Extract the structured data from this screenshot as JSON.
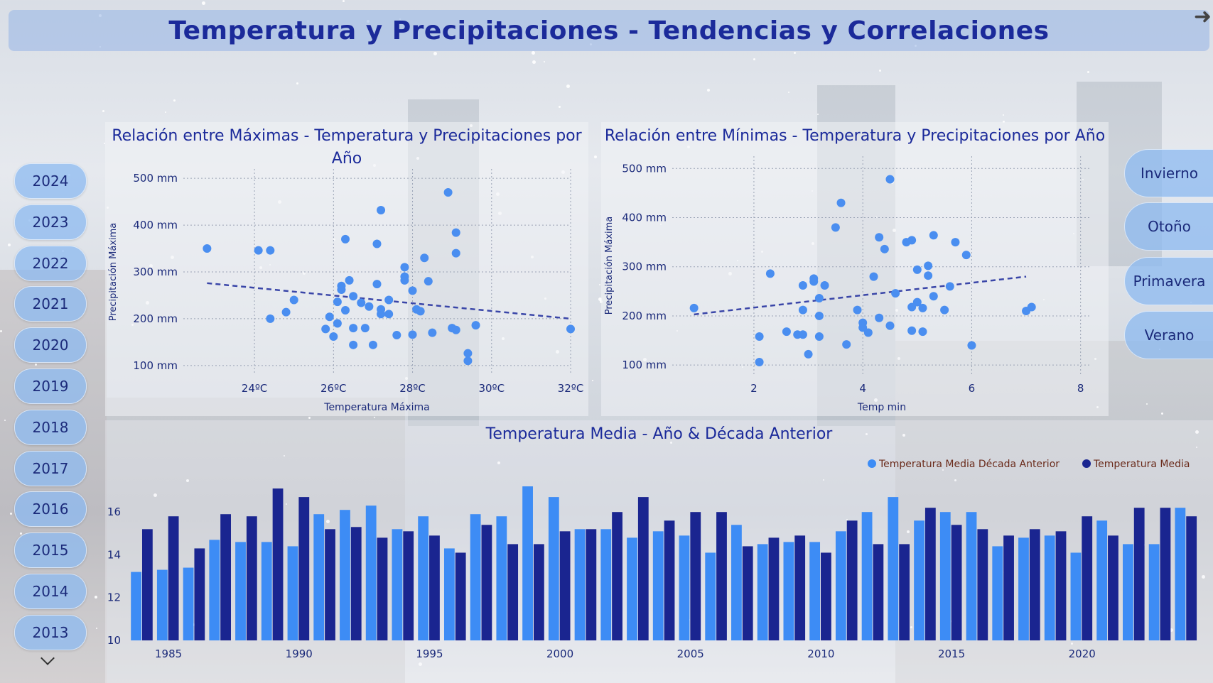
{
  "page": {
    "title": "Temperatura y Precipitaciones - Tendencias y Correlaciones"
  },
  "years": [
    "2024",
    "2023",
    "2022",
    "2021",
    "2020",
    "2019",
    "2018",
    "2017",
    "2016",
    "2015",
    "2014",
    "2013"
  ],
  "seasons": [
    "Invierno",
    "Otoño",
    "Primavera",
    "Verano"
  ],
  "colors": {
    "dot": "#4a8ef0",
    "trend": "#3a46a8",
    "bar_light": "#3d8cf5",
    "bar_dark": "#1a2590",
    "title": "#1b2a9a"
  },
  "icons": {
    "arrow": "arrow-right-icon",
    "chevron": "chevron-down-icon"
  },
  "chart_data": [
    {
      "type": "scatter",
      "title": "Relación entre Máximas - Temperatura y Precipitaciones por Año",
      "xlabel": "Temperatura Máxima",
      "ylabel": "Precipitación Máxima",
      "xlim": [
        22.2,
        32
      ],
      "ylim": [
        80,
        520
      ],
      "xticks": [
        24,
        26,
        28,
        30,
        32
      ],
      "xtick_labels": [
        "24ºC",
        "26ºC",
        "28ºC",
        "30ºC",
        "32ºC"
      ],
      "yticks": [
        100,
        200,
        300,
        400,
        500
      ],
      "ytick_labels": [
        "100 mm",
        "200 mm",
        "300 mm",
        "400 mm",
        "500 mm"
      ],
      "trend": [
        [
          22.8,
          276
        ],
        [
          32,
          200
        ]
      ],
      "points": [
        [
          22.8,
          350
        ],
        [
          24.1,
          346
        ],
        [
          24.4,
          346
        ],
        [
          24.4,
          200
        ],
        [
          24.8,
          214
        ],
        [
          25.0,
          240
        ],
        [
          25.8,
          178
        ],
        [
          25.9,
          204
        ],
        [
          26.0,
          162
        ],
        [
          26.1,
          190
        ],
        [
          26.1,
          236
        ],
        [
          26.2,
          262
        ],
        [
          26.2,
          270
        ],
        [
          26.3,
          370
        ],
        [
          26.3,
          218
        ],
        [
          26.4,
          282
        ],
        [
          26.5,
          180
        ],
        [
          26.5,
          144
        ],
        [
          26.5,
          248
        ],
        [
          26.7,
          234
        ],
        [
          26.8,
          180
        ],
        [
          26.9,
          226
        ],
        [
          27.0,
          144
        ],
        [
          27.1,
          274
        ],
        [
          27.1,
          360
        ],
        [
          27.2,
          432
        ],
        [
          27.2,
          220
        ],
        [
          27.2,
          210
        ],
        [
          27.4,
          210
        ],
        [
          27.4,
          240
        ],
        [
          27.6,
          165
        ],
        [
          27.8,
          310
        ],
        [
          27.8,
          290
        ],
        [
          27.8,
          282
        ],
        [
          28.0,
          166
        ],
        [
          28.0,
          260
        ],
        [
          28.1,
          220
        ],
        [
          28.2,
          216
        ],
        [
          28.3,
          330
        ],
        [
          28.4,
          280
        ],
        [
          28.5,
          170
        ],
        [
          28.9,
          470
        ],
        [
          29.0,
          180
        ],
        [
          29.1,
          384
        ],
        [
          29.1,
          340
        ],
        [
          29.1,
          176
        ],
        [
          29.4,
          110
        ],
        [
          29.4,
          126
        ],
        [
          29.6,
          186
        ],
        [
          32.0,
          178
        ]
      ]
    },
    {
      "type": "scatter",
      "title": "Relación entre Mínimas - Temperatura y Precipitaciones por Año",
      "xlabel": "Temp min",
      "ylabel": "Precipitación Máxima",
      "xlim": [
        0.5,
        8.2
      ],
      "ylim": [
        80,
        525
      ],
      "xticks": [
        2,
        4,
        6,
        8
      ],
      "xtick_labels": [
        "2",
        "4",
        "6",
        "8"
      ],
      "yticks": [
        100,
        200,
        300,
        400,
        500
      ],
      "ytick_labels": [
        "100 mm",
        "200 mm",
        "300 mm",
        "400 mm",
        "500 mm"
      ],
      "trend": [
        [
          0.9,
          203
        ],
        [
          7.0,
          280
        ]
      ],
      "points": [
        [
          0.9,
          216
        ],
        [
          2.1,
          106
        ],
        [
          2.1,
          158
        ],
        [
          2.3,
          286
        ],
        [
          2.6,
          168
        ],
        [
          2.8,
          162
        ],
        [
          2.9,
          162
        ],
        [
          2.9,
          262
        ],
        [
          2.9,
          212
        ],
        [
          3.0,
          122
        ],
        [
          3.1,
          270
        ],
        [
          3.1,
          276
        ],
        [
          3.2,
          236
        ],
        [
          3.2,
          158
        ],
        [
          3.2,
          200
        ],
        [
          3.3,
          262
        ],
        [
          3.5,
          380
        ],
        [
          3.6,
          430
        ],
        [
          3.7,
          142
        ],
        [
          3.9,
          212
        ],
        [
          4.0,
          176
        ],
        [
          4.0,
          186
        ],
        [
          4.1,
          166
        ],
        [
          4.2,
          280
        ],
        [
          4.3,
          196
        ],
        [
          4.3,
          360
        ],
        [
          4.4,
          336
        ],
        [
          4.5,
          180
        ],
        [
          4.5,
          478
        ],
        [
          4.6,
          246
        ],
        [
          4.8,
          350
        ],
        [
          4.9,
          354
        ],
        [
          4.9,
          218
        ],
        [
          4.9,
          170
        ],
        [
          5.0,
          228
        ],
        [
          5.0,
          294
        ],
        [
          5.1,
          216
        ],
        [
          5.1,
          168
        ],
        [
          5.2,
          302
        ],
        [
          5.2,
          282
        ],
        [
          5.3,
          240
        ],
        [
          5.3,
          364
        ],
        [
          5.5,
          212
        ],
        [
          5.6,
          260
        ],
        [
          5.7,
          350
        ],
        [
          5.9,
          324
        ],
        [
          6.0,
          140
        ],
        [
          7.0,
          210
        ],
        [
          7.1,
          218
        ]
      ]
    },
    {
      "type": "bar",
      "title": "Temperatura Media - Año & Década Anterior",
      "series": [
        {
          "name": "Temperatura Media Década Anterior",
          "values": [
            13.2,
            13.3,
            13.4,
            14.7,
            14.6,
            14.6,
            14.4,
            15.9,
            16.1,
            16.3,
            15.2,
            15.8,
            14.3,
            15.9,
            15.8,
            17.2,
            16.7,
            15.2,
            15.2,
            14.8,
            15.1,
            14.9,
            14.1,
            15.4,
            14.5,
            14.6,
            14.6,
            15.1,
            16.0,
            16.7,
            15.6,
            16.0,
            16.0,
            14.4,
            14.8,
            14.9,
            14.1,
            15.6,
            14.5,
            14.5,
            16.2
          ]
        },
        {
          "name": "Temperatura Media",
          "values": [
            15.2,
            15.8,
            14.3,
            15.9,
            15.8,
            17.1,
            16.7,
            15.2,
            15.3,
            14.8,
            15.1,
            14.9,
            14.1,
            15.4,
            14.5,
            14.5,
            15.1,
            15.2,
            16.0,
            16.7,
            15.6,
            16.0,
            16.0,
            14.4,
            14.8,
            14.9,
            14.1,
            15.6,
            14.5,
            14.5,
            16.2,
            15.4,
            15.2,
            14.9,
            15.2,
            15.1,
            15.8,
            14.9,
            16.2,
            16.2,
            15.8
          ]
        }
      ],
      "x": [
        1984,
        1985,
        1986,
        1987,
        1988,
        1989,
        1990,
        1991,
        1992,
        1993,
        1994,
        1995,
        1996,
        1997,
        1998,
        1999,
        2000,
        2001,
        2002,
        2003,
        2004,
        2005,
        2006,
        2007,
        2008,
        2009,
        2010,
        2011,
        2012,
        2013,
        2014,
        2015,
        2016,
        2017,
        2018,
        2019,
        2020,
        2021,
        2022,
        2023,
        2024
      ],
      "xticks": [
        1985,
        1990,
        1995,
        2000,
        2005,
        2010,
        2015,
        2020
      ],
      "ylim": [
        10,
        17.5
      ],
      "yticks": [
        10,
        12,
        14,
        16
      ],
      "legend": "top-right"
    }
  ]
}
